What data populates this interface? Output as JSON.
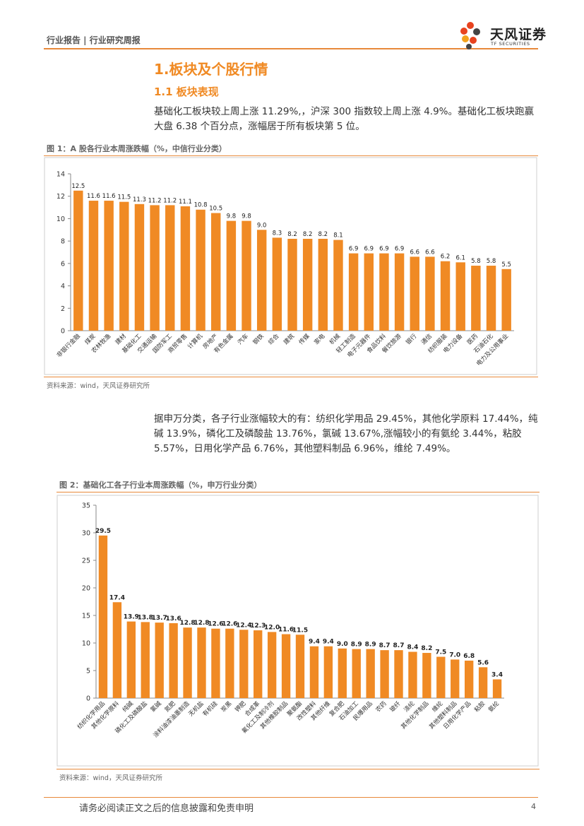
{
  "header": {
    "left": "行业报告 | 行业研究周报",
    "logo_cn": "天风证券",
    "logo_en": "TF SECURITIES"
  },
  "section": {
    "h1": "1.板块及个股行情",
    "h2": "1.1 板块表现",
    "para1": "基础化工板块较上周上涨 11.29%,，沪深 300 指数较上周上涨 4.9%。基础化工板块跑赢大盘 6.38 个百分点，涨幅居于所有板块第 5 位。",
    "para2": "据申万分类，各子行业涨幅较大的有：纺织化学用品 29.45%，其他化学原料 17.44%，纯碱 13.9%，磷化工及磷酸盐 13.76%，氯碱 13.67%,涨幅较小的有氨纶 3.44%，粘胶 5.57%，日用化学产品 6.76%，其他塑料制品 6.96%，维纶 7.49%。"
  },
  "figure1": {
    "title": "图 1：A 股各行业本周涨跌幅（%，中信行业分类）",
    "source": "资料来源：wind，天风证券研究所"
  },
  "figure2": {
    "title": "图 2：基础化工各子行业本周涨跌幅（%，申万行业分类）",
    "source": "资料来源：wind，天风证券研究所"
  },
  "footer": {
    "disclaimer": "请务必阅读正文之后的信息披露和免责申明",
    "page": "4"
  },
  "colors": {
    "accent": "#f08a24",
    "bar": "#f08a24"
  },
  "chart_data": [
    {
      "type": "bar",
      "title": "图 1：A 股各行业本周涨跌幅（%，中信行业分类）",
      "xlabel": "",
      "ylabel": "",
      "ylim": [
        0,
        14
      ],
      "yticks": [
        "0",
        "2",
        "4",
        "6",
        "8",
        "10",
        "12",
        "14"
      ],
      "categories": [
        "非银行金融",
        "煤炭",
        "农林牧渔",
        "建材",
        "基础化工",
        "交通运输",
        "国防军工",
        "商贸零售",
        "计算机",
        "房地产",
        "有色金属",
        "汽车",
        "钢铁",
        "综合",
        "建筑",
        "传媒",
        "家电",
        "机械",
        "轻工制造",
        "电子元器件",
        "食品饮料",
        "餐饮旅游",
        "银行",
        "通信",
        "纺织服装",
        "电力设备",
        "医药",
        "石油石化",
        "电力及公用事业"
      ],
      "values": [
        12.5,
        11.6,
        11.6,
        11.5,
        11.3,
        11.2,
        11.2,
        11.1,
        10.8,
        10.5,
        9.8,
        9.8,
        9.0,
        8.3,
        8.2,
        8.2,
        8.2,
        8.1,
        6.9,
        6.9,
        6.9,
        6.9,
        6.6,
        6.6,
        6.2,
        6.1,
        5.8,
        5.8,
        5.5
      ],
      "labels": [
        "12.5",
        "11.6",
        "11.6",
        "11.5",
        "11.3",
        "11.2",
        "11.2",
        "11.1",
        "10.8",
        "10.5",
        "9.8",
        "9.8",
        "9.0",
        "8.3",
        "8.2",
        "8.2",
        "8.2",
        "8.1",
        "6.9",
        "6.9",
        "6.9",
        "6.9",
        "6.6",
        "6.6",
        "6.2",
        "6.1",
        "5.8",
        "5.8",
        "5.5"
      ],
      "grid": false,
      "legend": "none"
    },
    {
      "type": "bar",
      "title": "图 2：基础化工各子行业本周涨跌幅（%，申万行业分类）",
      "xlabel": "",
      "ylabel": "",
      "ylim": [
        0,
        35
      ],
      "yticks": [
        "0",
        "5",
        "10",
        "15",
        "20",
        "25",
        "30",
        "35"
      ],
      "categories": [
        "纺织化学用品",
        "其他化学原料",
        "纯碱",
        "磷化工及磷酸盐",
        "氯碱",
        "氮肥",
        "涂料油漆油墨制造",
        "无机盐",
        "有机硅",
        "炭黑",
        "钾肥",
        "合成革",
        "氟化工及制冷剂",
        "其他橡胶制品",
        "聚氨酯",
        "改性塑料",
        "其他纤维",
        "复合肥",
        "石油加工",
        "民爆用品",
        "农药",
        "玻纤",
        "涤纶",
        "其他化学制品",
        "维纶",
        "其他塑料制品",
        "日用化学产品",
        "粘胶",
        "氨纶"
      ],
      "values": [
        29.5,
        17.4,
        13.9,
        13.8,
        13.7,
        13.6,
        12.8,
        12.8,
        12.6,
        12.6,
        12.4,
        12.3,
        12.0,
        11.6,
        11.5,
        9.4,
        9.4,
        9.0,
        8.9,
        8.9,
        8.7,
        8.7,
        8.4,
        8.2,
        7.5,
        7.0,
        6.8,
        5.6,
        3.4
      ],
      "labels": [
        "29.5",
        "17.4",
        "13.9",
        "13.8",
        "13.7",
        "13.6",
        "12.8",
        "12.8",
        "12.6",
        "12.6",
        "12.4",
        "12.3",
        "12.0",
        "11.6",
        "11.5",
        "9.4",
        "9.4",
        "9.0",
        "8.9",
        "8.9",
        "8.7",
        "8.7",
        "8.4",
        "8.2",
        "7.5",
        "7.0",
        "6.8",
        "5.6",
        "3.4"
      ],
      "grid": false,
      "legend": "none"
    }
  ]
}
